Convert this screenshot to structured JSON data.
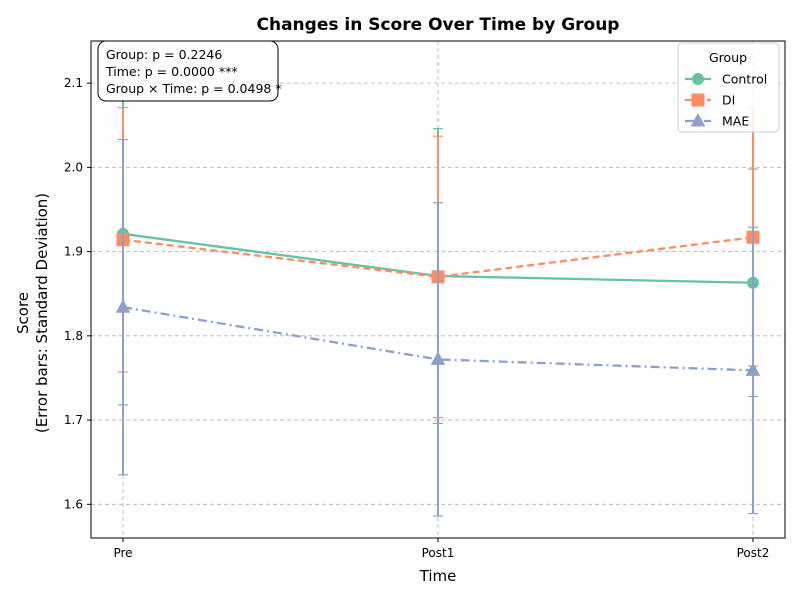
{
  "chart_data": {
    "type": "line",
    "title": "Changes in Score Over Time by Group",
    "xlabel": "Time",
    "ylabel_line1": "Score",
    "ylabel_line2": "(Error bars: Standard Deviation)",
    "categories": [
      "Pre",
      "Post1",
      "Post2"
    ],
    "ylim": [
      1.56,
      2.15
    ],
    "yticks": [
      1.6,
      1.7,
      1.8,
      1.9,
      2.0,
      2.1
    ],
    "grid": true,
    "legend": {
      "title": "Group",
      "position": "top-right"
    },
    "series": [
      {
        "name": "Control",
        "values": [
          1.921,
          1.871,
          1.863
        ],
        "sd": [
          0.203,
          0.175,
          0.135
        ],
        "color": "#66c2a5",
        "marker": "circle",
        "line_style": "solid"
      },
      {
        "name": "DI",
        "values": [
          1.914,
          1.87,
          1.917
        ],
        "sd": [
          0.157,
          0.167,
          0.153
        ],
        "color": "#fc8d62",
        "marker": "square",
        "line_style": "dashed"
      },
      {
        "name": "MAE",
        "values": [
          1.834,
          1.772,
          1.759
        ],
        "sd": [
          0.199,
          0.186,
          0.17
        ],
        "color": "#8da0cb",
        "marker": "triangle",
        "line_style": "dashdot"
      }
    ],
    "annotation": [
      "Group: p = 0.2246",
      "Time: p = 0.0000 ***",
      "Group × Time: p = 0.0498 *"
    ]
  }
}
